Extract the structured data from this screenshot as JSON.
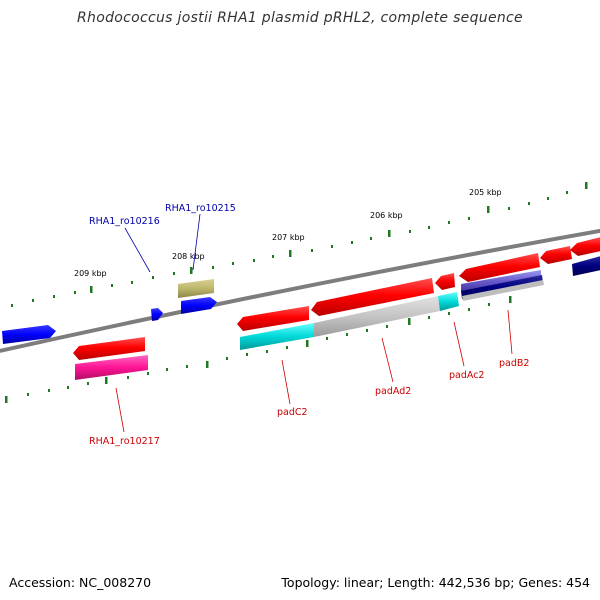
{
  "title": "Rhodococcus jostii RHA1 plasmid pRHL2, complete sequence",
  "footer": {
    "accession": "Accession: NC_008270",
    "summary": "Topology: linear; Length: 442,536 bp; Genes: 454"
  },
  "colors": {
    "backbone": "#7d7d7d",
    "tick": "#1f7a1f",
    "label_blue": "#0000aa",
    "label_red": "#cc0000"
  },
  "scale_labels": [
    "209 kbp",
    "208 kbp",
    "207 kbp",
    "206 kbp",
    "205 kbp"
  ],
  "gene_labels": {
    "RHA1_ro10216": "RHA1_ro10216",
    "RHA1_ro10215": "RHA1_ro10215",
    "RHA1_ro10217": "RHA1_ro10217",
    "padC2": "padC2",
    "padAd2": "padAd2",
    "padAc2": "padAc2",
    "padB2": "padB2"
  }
}
